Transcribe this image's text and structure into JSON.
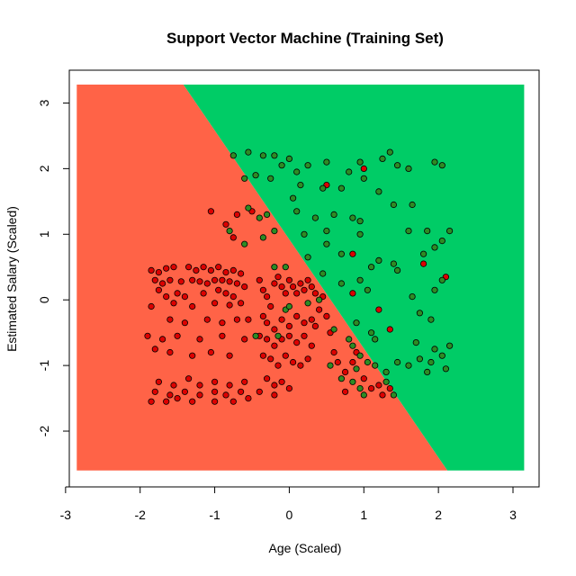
{
  "chart_data": {
    "type": "scatter",
    "title": "Support Vector Machine (Training Set)",
    "xlabel": "Age (Scaled)",
    "ylabel": "Estimated Salary (Scaled)",
    "xlim": [
      -2.95,
      3.35
    ],
    "ylim": [
      -2.85,
      3.5
    ],
    "xticks": [
      -3,
      -2,
      -1,
      0,
      1,
      2,
      3
    ],
    "yticks": [
      -2,
      -1,
      0,
      1,
      2,
      3
    ],
    "grid": false,
    "regions": {
      "extent": {
        "x": [
          -2.85,
          3.15
        ],
        "y": [
          -2.6,
          3.28
        ]
      },
      "boundary": [
        [
          -1.42,
          3.28
        ],
        [
          2.12,
          -2.6
        ]
      ],
      "colors": {
        "class0": "#ff6347",
        "class1": "#00cc66"
      }
    },
    "point_colors": {
      "class0": "#dd0000",
      "class1": "#2e8b24"
    },
    "series": [
      {
        "points": [
          [
            -1.85,
            0.45
          ],
          [
            -1.75,
            0.42
          ],
          [
            -1.65,
            0.48
          ],
          [
            -1.55,
            0.5
          ],
          [
            -1.8,
            0.3
          ],
          [
            -1.7,
            0.25
          ],
          [
            -1.6,
            0.3
          ],
          [
            -1.45,
            0.28
          ],
          [
            -1.35,
            0.5
          ],
          [
            -1.25,
            0.45
          ],
          [
            -1.15,
            0.5
          ],
          [
            -1.05,
            0.45
          ],
          [
            -0.95,
            0.5
          ],
          [
            -0.85,
            0.42
          ],
          [
            -0.75,
            0.45
          ],
          [
            -0.65,
            0.4
          ],
          [
            -1.3,
            0.3
          ],
          [
            -1.2,
            0.28
          ],
          [
            -1.1,
            0.25
          ],
          [
            -1.0,
            0.3
          ],
          [
            -0.9,
            0.3
          ],
          [
            -0.8,
            0.28
          ],
          [
            -0.7,
            0.25
          ],
          [
            -0.6,
            0.2
          ],
          [
            -1.75,
            0.15
          ],
          [
            -1.65,
            0.05
          ],
          [
            -1.5,
            0.1
          ],
          [
            -1.4,
            0.05
          ],
          [
            -1.15,
            0.1
          ],
          [
            -0.95,
            0.15
          ],
          [
            -0.85,
            0.1
          ],
          [
            -0.75,
            0.05
          ],
          [
            -1.85,
            -0.1
          ],
          [
            -1.55,
            -0.05
          ],
          [
            -1.3,
            -0.1
          ],
          [
            -1.0,
            -0.05
          ],
          [
            -0.8,
            -0.08
          ],
          [
            -0.65,
            -0.05
          ],
          [
            -1.6,
            -0.3
          ],
          [
            -1.4,
            -0.35
          ],
          [
            -1.1,
            -0.3
          ],
          [
            -0.9,
            -0.35
          ],
          [
            -0.7,
            -0.3
          ],
          [
            -0.55,
            -0.3
          ],
          [
            -1.9,
            -0.55
          ],
          [
            -1.7,
            -0.6
          ],
          [
            -1.5,
            -0.55
          ],
          [
            -1.2,
            -0.6
          ],
          [
            -0.9,
            -0.55
          ],
          [
            -0.6,
            -0.6
          ],
          [
            -1.8,
            -0.75
          ],
          [
            -1.6,
            -0.8
          ],
          [
            -1.3,
            -0.85
          ],
          [
            -1.05,
            -0.8
          ],
          [
            -0.8,
            -0.85
          ],
          [
            -1.75,
            -1.25
          ],
          [
            -1.55,
            -1.3
          ],
          [
            -1.35,
            -1.2
          ],
          [
            -1.2,
            -1.3
          ],
          [
            -1.0,
            -1.25
          ],
          [
            -0.8,
            -1.3
          ],
          [
            -0.6,
            -1.25
          ],
          [
            -1.8,
            -1.4
          ],
          [
            -1.6,
            -1.45
          ],
          [
            -1.4,
            -1.4
          ],
          [
            -1.2,
            -1.45
          ],
          [
            -1.0,
            -1.4
          ],
          [
            -0.85,
            -1.45
          ],
          [
            -0.65,
            -1.4
          ],
          [
            -1.85,
            -1.55
          ],
          [
            -1.65,
            -1.55
          ],
          [
            -1.5,
            -1.5
          ],
          [
            -1.3,
            -1.55
          ],
          [
            -1.0,
            -1.55
          ],
          [
            -0.75,
            -1.55
          ],
          [
            -0.55,
            -1.5
          ],
          [
            -1.05,
            1.35
          ],
          [
            -0.85,
            1.15
          ],
          [
            -0.75,
            0.95
          ],
          [
            -0.7,
            1.3
          ],
          [
            -0.5,
            1.35
          ],
          [
            -0.4,
            0.3
          ],
          [
            -0.35,
            0.15
          ],
          [
            -0.3,
            0.05
          ],
          [
            -0.25,
            -0.1
          ],
          [
            -0.2,
            0.25
          ],
          [
            -0.15,
            0.35
          ],
          [
            -0.1,
            0.2
          ],
          [
            -0.05,
            0.1
          ],
          [
            0.0,
            0.3
          ],
          [
            0.05,
            0.2
          ],
          [
            0.1,
            0.1
          ],
          [
            0.15,
            0.25
          ],
          [
            0.2,
            0.15
          ],
          [
            0.25,
            0.3
          ],
          [
            0.3,
            0.2
          ],
          [
            0.35,
            0.1
          ],
          [
            -0.35,
            -0.25
          ],
          [
            -0.3,
            -0.35
          ],
          [
            -0.2,
            -0.45
          ],
          [
            -0.1,
            -0.3
          ],
          [
            0.0,
            -0.4
          ],
          [
            0.1,
            -0.25
          ],
          [
            0.2,
            -0.35
          ],
          [
            0.3,
            -0.3
          ],
          [
            -0.4,
            -0.55
          ],
          [
            -0.3,
            -0.6
          ],
          [
            -0.2,
            -0.7
          ],
          [
            -0.1,
            -0.6
          ],
          [
            0.0,
            -0.55
          ],
          [
            0.1,
            -0.65
          ],
          [
            0.2,
            -0.55
          ],
          [
            0.3,
            -0.7
          ],
          [
            -0.35,
            -0.85
          ],
          [
            -0.25,
            -0.9
          ],
          [
            -0.15,
            -1.0
          ],
          [
            -0.05,
            -0.85
          ],
          [
            0.05,
            -0.95
          ],
          [
            0.15,
            -1.0
          ],
          [
            0.25,
            -0.9
          ],
          [
            -0.3,
            -1.2
          ],
          [
            -0.2,
            -1.3
          ],
          [
            -0.1,
            -1.25
          ],
          [
            0.0,
            -1.35
          ],
          [
            -0.4,
            -1.4
          ],
          [
            -0.2,
            -1.45
          ],
          [
            0.35,
            -0.4
          ],
          [
            0.4,
            -0.15
          ],
          [
            0.45,
            0.05
          ],
          [
            0.5,
            -0.25
          ],
          [
            0.55,
            -0.5
          ],
          [
            0.6,
            -0.8
          ],
          [
            0.65,
            -0.95
          ],
          [
            0.75,
            -1.1
          ],
          [
            0.85,
            -0.95
          ],
          [
            0.9,
            -0.8
          ],
          [
            1.0,
            -1.2
          ],
          [
            1.1,
            -1.35
          ],
          [
            1.2,
            -1.3
          ],
          [
            1.25,
            -1.45
          ],
          [
            1.35,
            -1.35
          ],
          [
            0.75,
            -1.4
          ],
          [
            0.5,
            1.75
          ],
          [
            1.0,
            2.0
          ],
          [
            1.2,
            -0.15
          ],
          [
            0.85,
            0.7
          ],
          [
            1.8,
            0.55
          ],
          [
            2.1,
            0.35
          ],
          [
            0.85,
            0.1
          ],
          [
            1.35,
            -0.45
          ]
        ]
      },
      {
        "points": [
          [
            -0.75,
            2.2
          ],
          [
            -0.55,
            2.25
          ],
          [
            -0.35,
            2.2
          ],
          [
            -0.2,
            2.2
          ],
          [
            -0.1,
            2.05
          ],
          [
            0.0,
            2.15
          ],
          [
            0.1,
            1.95
          ],
          [
            0.25,
            2.05
          ],
          [
            0.5,
            2.1
          ],
          [
            0.8,
            1.95
          ],
          [
            0.95,
            2.1
          ],
          [
            1.25,
            2.15
          ],
          [
            1.35,
            2.25
          ],
          [
            1.45,
            2.05
          ],
          [
            1.6,
            2.0
          ],
          [
            1.95,
            2.1
          ],
          [
            2.05,
            2.05
          ],
          [
            -0.6,
            1.85
          ],
          [
            -0.45,
            1.9
          ],
          [
            -0.25,
            1.85
          ],
          [
            0.05,
            1.55
          ],
          [
            0.15,
            1.75
          ],
          [
            0.45,
            1.7
          ],
          [
            0.7,
            1.7
          ],
          [
            1.0,
            1.85
          ],
          [
            1.2,
            1.65
          ],
          [
            -0.55,
            1.4
          ],
          [
            -0.4,
            1.25
          ],
          [
            -0.3,
            1.3
          ],
          [
            0.1,
            1.35
          ],
          [
            0.35,
            1.25
          ],
          [
            0.6,
            1.3
          ],
          [
            0.85,
            1.25
          ],
          [
            0.95,
            1.2
          ],
          [
            1.4,
            1.45
          ],
          [
            1.65,
            1.45
          ],
          [
            -0.8,
            1.05
          ],
          [
            -0.6,
            0.85
          ],
          [
            -0.35,
            0.95
          ],
          [
            -0.2,
            1.05
          ],
          [
            0.2,
            1.0
          ],
          [
            0.5,
            1.05
          ],
          [
            0.95,
            1.0
          ],
          [
            1.6,
            1.05
          ],
          [
            1.85,
            1.05
          ],
          [
            2.15,
            1.05
          ],
          [
            -0.05,
            0.5
          ],
          [
            0.25,
            0.65
          ],
          [
            0.5,
            0.85
          ],
          [
            0.7,
            0.7
          ],
          [
            1.1,
            0.5
          ],
          [
            1.2,
            0.6
          ],
          [
            1.4,
            0.55
          ],
          [
            1.8,
            0.7
          ],
          [
            1.95,
            0.8
          ],
          [
            2.05,
            0.9
          ],
          [
            0.45,
            0.4
          ],
          [
            0.7,
            0.25
          ],
          [
            0.95,
            0.3
          ],
          [
            1.05,
            0.15
          ],
          [
            1.45,
            0.45
          ],
          [
            1.95,
            0.15
          ],
          [
            2.05,
            0.3
          ],
          [
            1.65,
            0.05
          ],
          [
            1.75,
            -0.2
          ],
          [
            1.9,
            -0.3
          ],
          [
            0.6,
            -0.45
          ],
          [
            0.9,
            -0.35
          ],
          [
            1.1,
            -0.5
          ],
          [
            1.15,
            -0.6
          ],
          [
            1.7,
            -0.65
          ],
          [
            1.95,
            -0.75
          ],
          [
            2.05,
            -0.85
          ],
          [
            2.15,
            -0.7
          ],
          [
            0.85,
            -0.7
          ],
          [
            0.95,
            -0.85
          ],
          [
            1.05,
            -0.95
          ],
          [
            1.15,
            -1.0
          ],
          [
            1.3,
            -1.1
          ],
          [
            1.45,
            -0.95
          ],
          [
            1.75,
            -0.9
          ],
          [
            1.85,
            -1.1
          ],
          [
            2.1,
            -1.05
          ],
          [
            0.7,
            -1.2
          ],
          [
            0.85,
            -1.25
          ],
          [
            0.95,
            -1.35
          ],
          [
            1.0,
            -1.45
          ],
          [
            1.3,
            -1.25
          ],
          [
            1.4,
            -1.45
          ],
          [
            0.8,
            -0.6
          ],
          [
            1.6,
            -1.0
          ],
          [
            1.9,
            -0.95
          ],
          [
            -0.45,
            -0.55
          ],
          [
            -0.05,
            -0.15
          ],
          [
            0.25,
            -0.05
          ],
          [
            0.4,
            0.0
          ],
          [
            -0.2,
            0.5
          ],
          [
            0.0,
            -0.1
          ],
          [
            -0.15,
            -0.55
          ],
          [
            0.55,
            -1.0
          ],
          [
            0.9,
            -1.05
          ]
        ]
      }
    ]
  }
}
